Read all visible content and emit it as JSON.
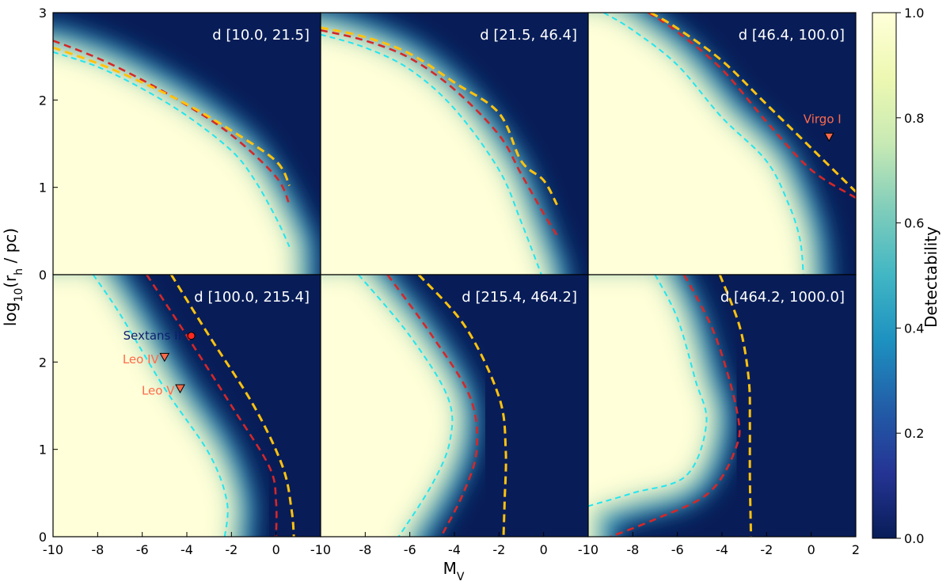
{
  "chart_data": {
    "type": "heatmap",
    "xlabel": "M",
    "xlabel_sub": "V",
    "ylabel_pre": "log",
    "ylabel_base_sub": "10",
    "ylabel_mid": "(r",
    "ylabel_r_sub": "h",
    "ylabel_post": " / pc)",
    "xlim": [
      -10,
      2
    ],
    "ylim": [
      0,
      3
    ],
    "x_ticks": [
      -10,
      -8,
      -6,
      -4,
      -2,
      0
    ],
    "x_ticks_last": [
      -10,
      -8,
      -6,
      -4,
      -2,
      0,
      2
    ],
    "y_ticks_top": [
      0,
      1,
      2,
      3
    ],
    "y_ticks_bottom": [
      0,
      1,
      2
    ],
    "colorbar": {
      "label": "Detectability",
      "range": [
        0.0,
        1.0
      ],
      "ticks": [
        "0.0",
        "0.2",
        "0.4",
        "0.6",
        "0.8",
        "1.0"
      ],
      "colormap": "YlGnBu",
      "colors": [
        "#ffffd9",
        "#edf8b1",
        "#c7e9b4",
        "#7fcdbb",
        "#41b6c4",
        "#1d91c0",
        "#225ea8",
        "#253494",
        "#081d58"
      ]
    },
    "contour_colors": {
      "cyan": "#22e6f0",
      "red": "#d62728",
      "gold": "#ffc20e"
    },
    "panels": [
      {
        "title": "d [10.0, 21.5]",
        "contours": {
          "cyan": [
            [
              -10,
              2.55
            ],
            [
              -8,
              2.38
            ],
            [
              -6,
              2.13
            ],
            [
              -4,
              1.82
            ],
            [
              -2,
              1.42
            ],
            [
              -1,
              1.1
            ],
            [
              0,
              0.65
            ],
            [
              0.6,
              0.32
            ]
          ],
          "red": [
            [
              -10,
              2.68
            ],
            [
              -8,
              2.48
            ],
            [
              -6,
              2.23
            ],
            [
              -4,
              1.94
            ],
            [
              -2,
              1.6
            ],
            [
              0,
              1.12
            ],
            [
              0.6,
              0.8
            ]
          ],
          "gold": [
            [
              -10,
              2.6
            ],
            [
              -8,
              2.42
            ],
            [
              -6,
              2.2
            ],
            [
              -4,
              1.95
            ],
            [
              -2,
              1.65
            ],
            [
              0,
              1.3
            ],
            [
              0.6,
              1.02
            ]
          ]
        },
        "objects": []
      },
      {
        "title": "d [21.5, 46.4]",
        "contours": {
          "cyan": [
            [
              -10,
              2.75
            ],
            [
              -8,
              2.6
            ],
            [
              -6,
              2.35
            ],
            [
              -4,
              1.9
            ],
            [
              -2,
              1.2
            ],
            [
              -1,
              0.6
            ],
            [
              -0.1,
              0
            ]
          ],
          "red": [
            [
              -10,
              2.8
            ],
            [
              -8,
              2.68
            ],
            [
              -6,
              2.48
            ],
            [
              -4,
              2.12
            ],
            [
              -2,
              1.6
            ],
            [
              -1,
              1.15
            ],
            [
              0,
              0.7
            ],
            [
              0.6,
              0.45
            ]
          ],
          "gold": [
            [
              -10,
              2.83
            ],
            [
              -8,
              2.72
            ],
            [
              -6,
              2.53
            ],
            [
              -4,
              2.2
            ],
            [
              -2,
              1.85
            ],
            [
              -1,
              1.3
            ],
            [
              0,
              1.08
            ],
            [
              0.6,
              0.8
            ]
          ]
        },
        "objects": []
      },
      {
        "title": "d [46.4, 100.0]",
        "contours": {
          "cyan": [
            [
              -9.3,
              3
            ],
            [
              -8,
              2.8
            ],
            [
              -6,
              2.4
            ],
            [
              -4,
              1.8
            ],
            [
              -2,
              1.3
            ],
            [
              -1,
              0.8
            ],
            [
              -0.5,
              0.4
            ],
            [
              -0.35,
              0
            ]
          ],
          "red": [
            [
              -7.3,
              3
            ],
            [
              -6,
              2.78
            ],
            [
              -4,
              2.35
            ],
            [
              -2,
              1.75
            ],
            [
              0,
              1.2
            ],
            [
              2,
              0.88
            ]
          ],
          "gold": [
            [
              -7.2,
              3
            ],
            [
              -6,
              2.82
            ],
            [
              -4,
              2.45
            ],
            [
              -2,
              1.95
            ],
            [
              0,
              1.45
            ],
            [
              2,
              0.95
            ]
          ]
        },
        "objects": [
          {
            "name": "Virgo I",
            "mv": 0.8,
            "logrh": 1.58,
            "marker": "triangle",
            "color": "#ff6b4a",
            "label_dx": -0.3,
            "label_dy": 0.2,
            "anchor": "middle"
          }
        ]
      },
      {
        "title": "d [100.0, 215.4]",
        "contours": {
          "cyan": [
            [
              -8.2,
              3
            ],
            [
              -7,
              2.55
            ],
            [
              -5,
              1.7
            ],
            [
              -3,
              0.95
            ],
            [
              -2.2,
              0.4
            ],
            [
              -2.3,
              0
            ]
          ],
          "red": [
            [
              -5.8,
              3
            ],
            [
              -4,
              2.3
            ],
            [
              -2,
              1.5
            ],
            [
              -0.3,
              0.8
            ],
            [
              0,
              0.4
            ],
            [
              0,
              0
            ]
          ],
          "gold": [
            [
              -4.7,
              3
            ],
            [
              -3,
              2.3
            ],
            [
              -1,
              1.5
            ],
            [
              0.3,
              0.8
            ],
            [
              0.7,
              0.3
            ],
            [
              0.8,
              0
            ]
          ]
        },
        "objects": [
          {
            "name": "Sextans II",
            "mv": -3.8,
            "logrh": 2.3,
            "marker": "circle",
            "color": "#ff2a1f",
            "label_color": "#0b1f6e",
            "label_dx": -0.45,
            "label_dy": 0.0,
            "anchor": "end"
          },
          {
            "name": "Leo IV",
            "mv": -5.0,
            "logrh": 2.06,
            "marker": "triangle",
            "color": "#ff6b4a",
            "label_dx": -0.25,
            "label_dy": -0.03,
            "anchor": "end"
          },
          {
            "name": "Leo V",
            "mv": -4.3,
            "logrh": 1.7,
            "marker": "triangle",
            "color": "#ff6b4a",
            "label_dx": -0.25,
            "label_dy": -0.03,
            "anchor": "end"
          }
        ]
      },
      {
        "title": "d [215.4, 464.2]",
        "contours": {
          "cyan": [
            [
              -8.3,
              3
            ],
            [
              -6,
              2.3
            ],
            [
              -4.3,
              1.6
            ],
            [
              -4.2,
              1.1
            ],
            [
              -5,
              0.6
            ],
            [
              -6.5,
              0
            ]
          ],
          "red": [
            [
              -7,
              3
            ],
            [
              -5,
              2.3
            ],
            [
              -3.3,
              1.6
            ],
            [
              -3,
              1.0
            ],
            [
              -3.6,
              0.5
            ],
            [
              -4.6,
              0
            ]
          ],
          "gold": [
            [
              -5.6,
              3
            ],
            [
              -3.5,
              2.4
            ],
            [
              -2,
              1.6
            ],
            [
              -1.7,
              1.0
            ],
            [
              -1.75,
              0.4
            ],
            [
              -1.8,
              0
            ]
          ]
        },
        "objects": []
      },
      {
        "title": "d [464.2, 1000.0]",
        "contours": {
          "cyan": [
            [
              -7,
              3
            ],
            [
              -6,
              2.5
            ],
            [
              -5.2,
              1.8
            ],
            [
              -4.7,
              1.3
            ],
            [
              -5.6,
              0.7
            ],
            [
              -8,
              0.5
            ],
            [
              -10,
              0.35
            ]
          ],
          "red": [
            [
              -5.7,
              3
            ],
            [
              -4.3,
              2.3
            ],
            [
              -3.3,
              1.4
            ],
            [
              -3.4,
              1.0
            ],
            [
              -4.6,
              0.5
            ],
            [
              -7,
              0.2
            ],
            [
              -9,
              0
            ]
          ],
          "gold": [
            [
              -4.1,
              3
            ],
            [
              -3.2,
              2.4
            ],
            [
              -2.8,
              1.8
            ],
            [
              -2.75,
              1.3
            ],
            [
              -2.75,
              0.7
            ],
            [
              -2.7,
              0
            ]
          ]
        },
        "objects": []
      }
    ]
  }
}
